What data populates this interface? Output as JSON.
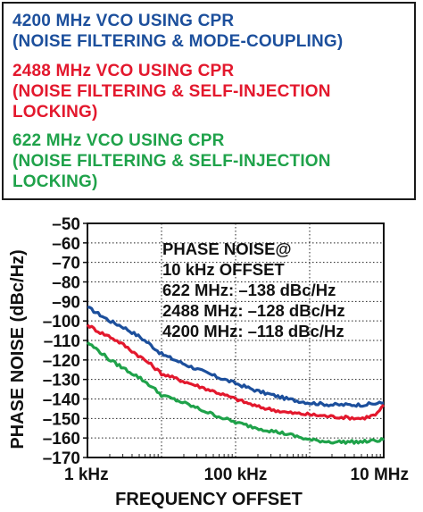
{
  "legend": [
    {
      "lines": [
        "4200 MHz VCO USING CPR",
        "(NOISE FILTERING & MODE-COUPLING)"
      ],
      "color": "#1c4f9c"
    },
    {
      "lines": [
        "2488 MHz VCO USING CPR",
        "(NOISE FILTERING & SELF-INJECTION",
        "LOCKING)"
      ],
      "color": "#e3182d"
    },
    {
      "lines": [
        "622 MHz VCO USING CPR",
        "(NOISE FILTERING & SELF-INJECTION",
        "LOCKING)"
      ],
      "color": "#1fa24a"
    }
  ],
  "annotation": {
    "lines": [
      "PHASE NOISE@",
      "10 kHz OFFSET",
      "622 MHz: –138 dBc/Hz",
      "2488 MHz: –128 dBc/Hz",
      "4200 MHz: –118 dBc/Hz"
    ]
  },
  "chart_data": {
    "type": "line",
    "title": "",
    "xlabel": "FREQUENCY OFFSET",
    "ylabel": "PHASE NOISE (dBc/Hz)",
    "x_scale": "log",
    "x_unit": "Hz",
    "xlim": [
      1000,
      10000000
    ],
    "ylim": [
      -170,
      -50
    ],
    "xticks": [
      {
        "value": 1000,
        "label": "1 kHz"
      },
      {
        "value": 100000,
        "label": "100 kHz"
      },
      {
        "value": 10000000,
        "label": "10 MHz"
      }
    ],
    "yticks": [
      -50,
      -60,
      -70,
      -80,
      -90,
      -100,
      -110,
      -120,
      -130,
      -140,
      -150,
      -160,
      -170
    ],
    "grid": true,
    "series": [
      {
        "name": "4200 MHz VCO USING CPR (NOISE FILTERING & MODE-COUPLING)",
        "color": "#1c4f9c",
        "x": [
          1000,
          1500,
          2000,
          3000,
          5000,
          7000,
          10000,
          20000,
          50000,
          100000,
          200000,
          500000,
          1000000,
          2000000,
          5000000,
          10000000
        ],
        "y": [
          -93,
          -97,
          -100,
          -103,
          -108,
          -112,
          -117,
          -122,
          -128,
          -132,
          -136,
          -140,
          -142,
          -143,
          -143,
          -142
        ]
      },
      {
        "name": "2488 MHz VCO USING CPR (NOISE FILTERING & SELF-INJECTION LOCKING)",
        "color": "#e3182d",
        "x": [
          1000,
          1500,
          2000,
          3000,
          5000,
          7000,
          10000,
          20000,
          50000,
          100000,
          200000,
          500000,
          1000000,
          2000000,
          5000000,
          8000000,
          10000000
        ],
        "y": [
          -102,
          -106,
          -108,
          -112,
          -118,
          -122,
          -127,
          -131,
          -136,
          -140,
          -144,
          -147,
          -148,
          -149,
          -150,
          -148,
          -143
        ]
      },
      {
        "name": "622 MHz VCO USING CPR (NOISE FILTERING & SELF-INJECTION LOCKING)",
        "color": "#1fa24a",
        "x": [
          1000,
          1500,
          2000,
          3000,
          5000,
          7000,
          10000,
          20000,
          50000,
          100000,
          200000,
          500000,
          1000000,
          2000000,
          5000000,
          10000000
        ],
        "y": [
          -111,
          -116,
          -120,
          -124,
          -129,
          -133,
          -138,
          -142,
          -148,
          -152,
          -155,
          -158,
          -161,
          -162,
          -162,
          -161
        ]
      }
    ]
  }
}
